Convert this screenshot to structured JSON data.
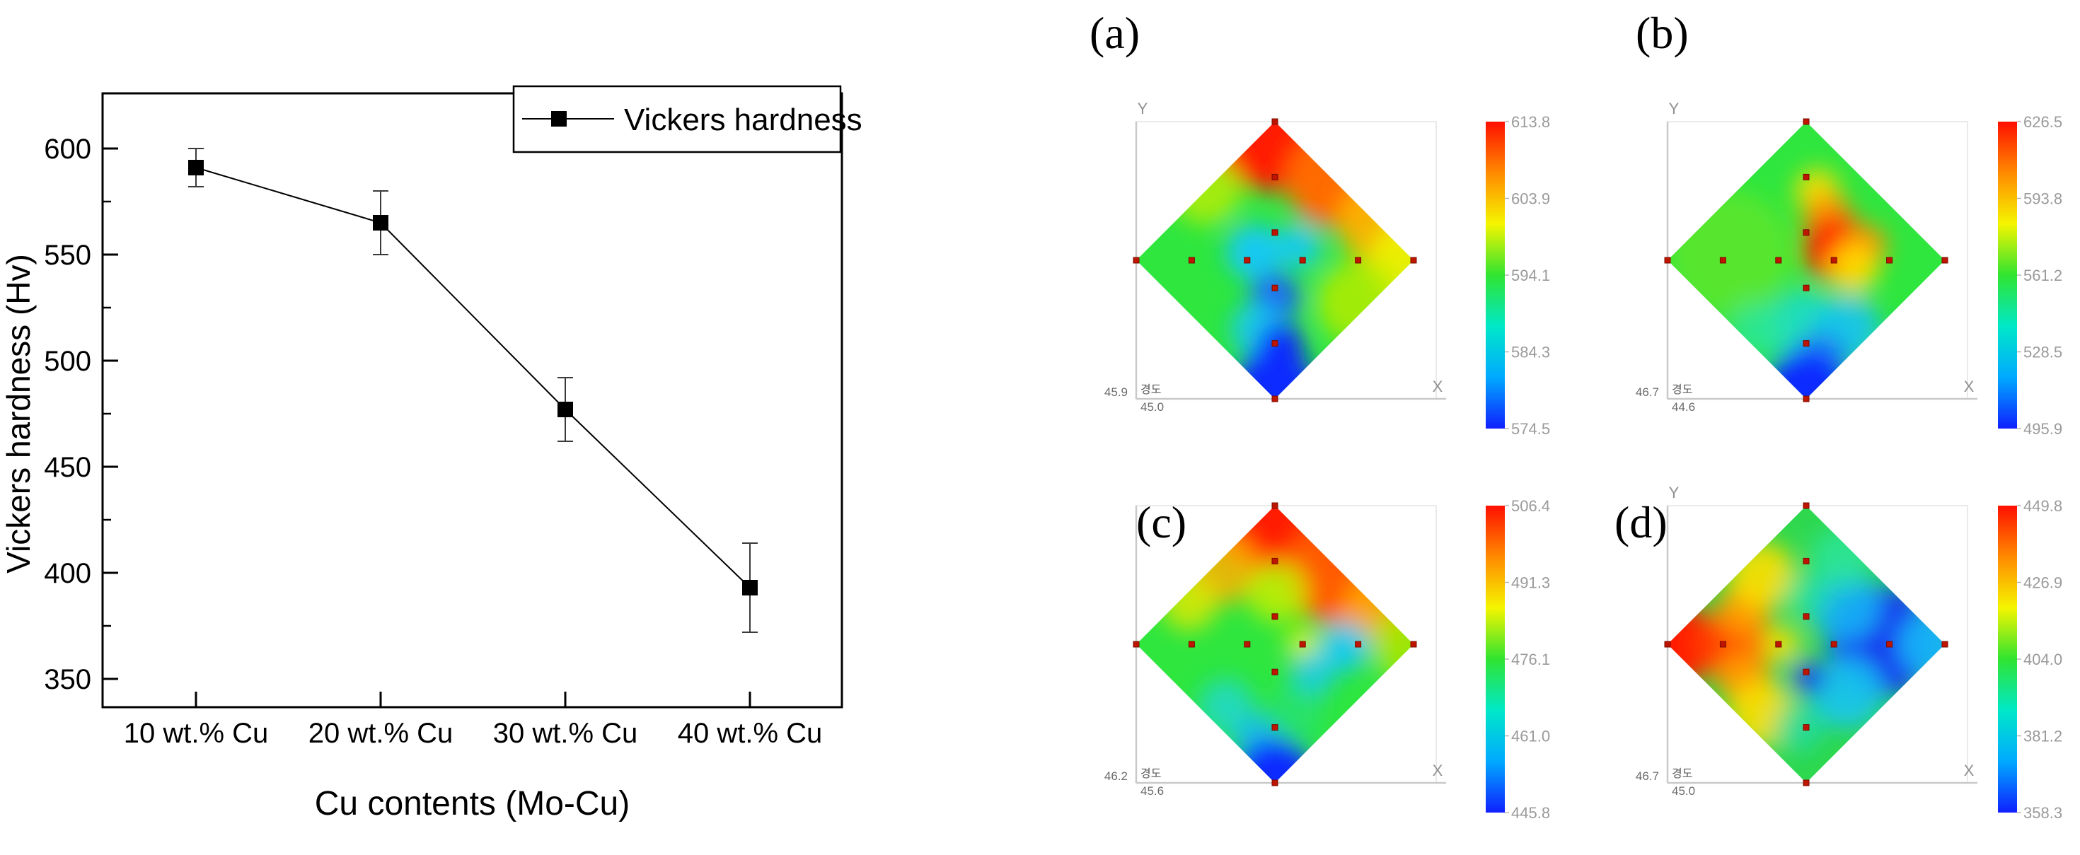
{
  "chart_data": [
    {
      "id": "vickers-line-chart",
      "type": "line",
      "title": "",
      "categories": [
        "10 wt.% Cu",
        "20 wt.% Cu",
        "30 wt.% Cu",
        "40 wt.% Cu"
      ],
      "series": [
        {
          "name": "Vickers hardness",
          "values": [
            591,
            565,
            477,
            393
          ],
          "errors": [
            9,
            15,
            15,
            21
          ]
        }
      ],
      "xlabel": "Cu contents (Mo-Cu)",
      "ylabel": "Vickers hardness (Hv)",
      "ylim": [
        337,
        626
      ],
      "yticks": [
        350,
        400,
        450,
        500,
        550,
        600
      ],
      "yticks_minor": [
        375,
        425,
        475,
        525,
        575
      ],
      "grid": false,
      "legend": {
        "label": "Vickers hardness",
        "position": "top-right"
      },
      "marker": "filled-square",
      "line_color": "#000000",
      "error_bar_color": "#3a3a3a"
    },
    {
      "id": "panel-a",
      "type": "heatmap",
      "label": "(a)",
      "xlabel": "X",
      "ylabel": "Y",
      "show_ylabel": true,
      "corner": {
        "left": "45.9",
        "word": "경도",
        "bottom": "45.0"
      },
      "colorbar_ticks": [
        "613.8",
        "603.9",
        "594.1",
        "584.3",
        "574.5"
      ],
      "value_range": [
        574.5,
        613.8
      ],
      "base_color": "#2ee63e",
      "blobs": [
        [
          0,
          -1,
          0.5,
          "#ff1e00",
          1
        ],
        [
          0.42,
          -0.58,
          0.34,
          "#ff6a00",
          1
        ],
        [
          0.75,
          -0.28,
          0.3,
          "#ffb000",
          0.95
        ],
        [
          1,
          0.02,
          0.32,
          "#eef000",
          0.95
        ],
        [
          0.6,
          0.3,
          0.3,
          "#b5ec00",
          0.85
        ],
        [
          -0.5,
          -0.52,
          0.26,
          "#c9ee00",
          0.75
        ],
        [
          -0.15,
          -0.06,
          0.2,
          "#17c9f2",
          1
        ],
        [
          0.17,
          -0.1,
          0.16,
          "#17c9f2",
          0.95
        ],
        [
          0,
          0.27,
          0.18,
          "#1a66f2",
          1
        ],
        [
          -0.12,
          0.5,
          0.2,
          "#17c9f2",
          0.9
        ],
        [
          0.04,
          0.62,
          0.17,
          "#0d2bff",
          1
        ],
        [
          0,
          0.93,
          0.3,
          "#0d2bff",
          1
        ]
      ]
    },
    {
      "id": "panel-b",
      "type": "heatmap",
      "label": "(b)",
      "xlabel": "X",
      "ylabel": "Y",
      "show_ylabel": true,
      "corner": {
        "left": "46.7",
        "word": "경도",
        "bottom": "44.6"
      },
      "colorbar_ticks": [
        "626.5",
        "593.8",
        "561.2",
        "528.5",
        "495.9"
      ],
      "value_range": [
        495.9,
        626.5
      ],
      "base_color": "#2ee63e",
      "blobs": [
        [
          -0.55,
          -0.05,
          0.45,
          "#7ae620",
          0.55
        ],
        [
          0.08,
          -0.5,
          0.16,
          "#ffdf00",
          0.9
        ],
        [
          0.16,
          -0.3,
          0.18,
          "#ff9000",
          0.95
        ],
        [
          0.22,
          -0.08,
          0.24,
          "#ff2800",
          1
        ],
        [
          0.42,
          -0.1,
          0.16,
          "#ff9000",
          0.95
        ],
        [
          0.34,
          0.06,
          0.18,
          "#ffdf00",
          0.9
        ],
        [
          -0.02,
          0.47,
          0.26,
          "#20dcc8",
          0.9
        ],
        [
          0.3,
          0.5,
          0.24,
          "#18c4f2",
          0.9
        ],
        [
          -0.35,
          0.5,
          0.2,
          "#2ae6a0",
          0.8
        ],
        [
          0.1,
          0.72,
          0.2,
          "#1a7df2",
          0.95
        ],
        [
          0,
          0.95,
          0.3,
          "#0d2bff",
          1
        ]
      ]
    },
    {
      "id": "panel-c",
      "type": "heatmap",
      "label": "(c)",
      "xlabel": "X",
      "ylabel": "Y",
      "show_ylabel": false,
      "corner": {
        "left": "46.2",
        "word": "경도",
        "bottom": "45.6"
      },
      "colorbar_ticks": [
        "506.4",
        "491.3",
        "476.1",
        "461.0",
        "445.8"
      ],
      "value_range": [
        445.8,
        506.4
      ],
      "base_color": "#2ee63e",
      "blobs": [
        [
          0,
          -0.95,
          0.45,
          "#ff1e00",
          1
        ],
        [
          0.45,
          -0.52,
          0.38,
          "#ff5a00",
          1
        ],
        [
          0.75,
          -0.25,
          0.26,
          "#ffa300",
          0.95
        ],
        [
          -0.38,
          -0.55,
          0.26,
          "#ffb000",
          0.85
        ],
        [
          -0.62,
          -0.3,
          0.2,
          "#e8ea00",
          0.8
        ],
        [
          0.02,
          -0.38,
          0.22,
          "#c8ee00",
          0.85
        ],
        [
          0.95,
          0,
          0.26,
          "#abe800",
          0.85
        ],
        [
          0.2,
          0,
          0.12,
          "#d8f000",
          0.95
        ],
        [
          0.5,
          0.02,
          0.18,
          "#17c9f2",
          0.95
        ],
        [
          0.27,
          0.22,
          0.16,
          "#17c9f2",
          0.85
        ],
        [
          -0.35,
          0.45,
          0.2,
          "#1fd8cc",
          0.85
        ],
        [
          -0.12,
          0.68,
          0.18,
          "#18bcf2",
          0.9
        ],
        [
          0.15,
          0.5,
          0.2,
          "#25e07a",
          0.7
        ],
        [
          0,
          0.96,
          0.28,
          "#0d2bff",
          1
        ]
      ]
    },
    {
      "id": "panel-d",
      "type": "heatmap",
      "label": "(d)",
      "xlabel": "X",
      "ylabel": "Y",
      "show_ylabel": true,
      "corner": {
        "left": "46.7",
        "word": "경도",
        "bottom": "45.0"
      },
      "colorbar_ticks": [
        "449.8",
        "426.9",
        "404.0",
        "381.2",
        "358.3"
      ],
      "value_range": [
        358.3,
        449.8
      ],
      "base_color": "#2ed84e",
      "blobs": [
        [
          -0.95,
          0,
          0.3,
          "#ff1e00",
          1
        ],
        [
          -0.55,
          0,
          0.26,
          "#ff3c00",
          1
        ],
        [
          -0.45,
          -0.24,
          0.2,
          "#ff9a00",
          0.95
        ],
        [
          -0.45,
          0.24,
          0.2,
          "#ff9a00",
          0.95
        ],
        [
          -0.32,
          -0.5,
          0.24,
          "#ffdf00",
          0.9
        ],
        [
          -0.32,
          0.5,
          0.24,
          "#ffdf00",
          0.9
        ],
        [
          -0.18,
          0,
          0.14,
          "#ffdf00",
          0.85
        ],
        [
          0.55,
          -0.02,
          0.4,
          "#1635f0",
          1
        ],
        [
          0.28,
          -0.28,
          0.26,
          "#18b4f5",
          0.9
        ],
        [
          0.3,
          0.35,
          0.26,
          "#18c4f2",
          0.9
        ],
        [
          0.9,
          0,
          0.24,
          "#18b4f5",
          0.95
        ],
        [
          0.25,
          -0.62,
          0.22,
          "#2ae6a0",
          0.8
        ],
        [
          0.02,
          0.24,
          0.12,
          "#1635f0",
          0.95
        ],
        [
          0,
          -0.35,
          0.16,
          "#2ae6a0",
          0.7
        ],
        [
          -0.05,
          0.6,
          0.18,
          "#20dcb4",
          0.7
        ]
      ]
    }
  ],
  "heatmap_common": {
    "sample_points": [
      [
        0,
        -1
      ],
      [
        0,
        -0.6
      ],
      [
        0,
        -0.2
      ],
      [
        0,
        0.2
      ],
      [
        0,
        0.6
      ],
      [
        0,
        1
      ],
      [
        -1,
        0
      ],
      [
        -0.6,
        0
      ],
      [
        -0.2,
        0
      ],
      [
        0.2,
        0
      ],
      [
        0.6,
        0
      ],
      [
        1,
        0
      ]
    ],
    "sample_point_color": "#bf1500",
    "sample_point_border": "#7a0b00",
    "axis_color": "#c9c9c9",
    "axis_letter_color": "#909090",
    "corner_text_color": "#6b6b6b",
    "colorbar_label_color": "#9a9a9a",
    "colorbar_gradient": [
      "#ff0f00",
      "#ff8a00",
      "#f5f500",
      "#30e430",
      "#00e8c8",
      "#00aaff",
      "#1020ff"
    ]
  }
}
